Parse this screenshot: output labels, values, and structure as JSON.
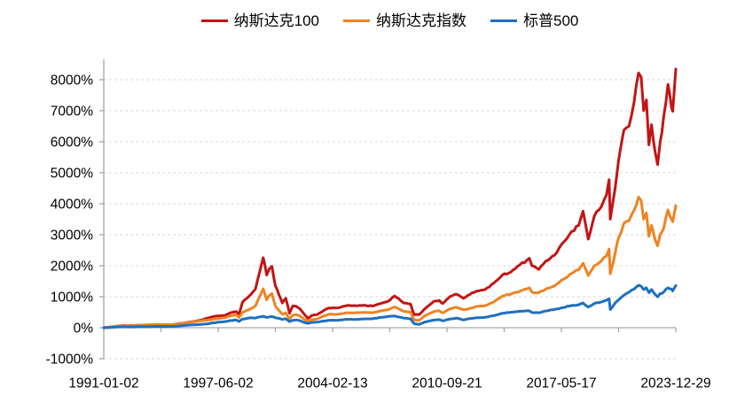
{
  "colors": {
    "background": "#ffffff",
    "axis": "#a6a6a6",
    "gridline": "#d9d9d9",
    "text": "#000000",
    "nasdaq100": "#c31414",
    "nasdaq_composite": "#ee8322",
    "sp500": "#1e6fc0"
  },
  "chart_data": {
    "type": "line",
    "title": "",
    "grid": "horizontal-dashed",
    "legend_position": "top-center",
    "x_axis": {
      "labels": [
        "1991-01-02",
        "1997-06-02",
        "2004-02-13",
        "2010-09-21",
        "2017-05-17",
        "2023-12-29"
      ],
      "min_year": 1991.0,
      "max_year": 2024.0,
      "minor_ticks": 10
    },
    "y_axis": {
      "unit": "%",
      "min": -1000,
      "max": 8000,
      "step": 1000,
      "tick_labels": [
        "8000%",
        "7000%",
        "6000%",
        "5000%",
        "4000%",
        "3000%",
        "2000%",
        "1000%",
        "0%",
        "-1000%"
      ]
    },
    "x": [
      1991.0,
      1991.5,
      1992.0,
      1992.5,
      1993.0,
      1993.5,
      1994.0,
      1994.5,
      1995.0,
      1995.5,
      1996.0,
      1996.5,
      1997.0,
      1997.5,
      1998.0,
      1998.3,
      1998.65,
      1998.8,
      1999.0,
      1999.25,
      1999.5,
      1999.75,
      1999.9,
      2000.2,
      2000.4,
      2000.55,
      2000.7,
      2000.9,
      2001.1,
      2001.3,
      2001.5,
      2001.72,
      2001.9,
      2002.1,
      2002.3,
      2002.5,
      2002.78,
      2003.0,
      2003.3,
      2003.7,
      2004.0,
      2004.5,
      2005.0,
      2005.5,
      2006.0,
      2006.5,
      2007.0,
      2007.4,
      2007.78,
      2008.0,
      2008.3,
      2008.7,
      2008.9,
      2009.2,
      2009.5,
      2010.0,
      2010.35,
      2010.55,
      2011.0,
      2011.35,
      2011.75,
      2012.0,
      2012.5,
      2013.0,
      2013.5,
      2014.0,
      2014.5,
      2015.0,
      2015.55,
      2015.7,
      2016.1,
      2016.5,
      2017.0,
      2017.5,
      2018.0,
      2018.4,
      2018.65,
      2018.95,
      2019.3,
      2019.7,
      2020.0,
      2020.15,
      2020.22,
      2020.5,
      2020.7,
      2021.0,
      2021.3,
      2021.6,
      2021.85,
      2022.0,
      2022.15,
      2022.3,
      2022.45,
      2022.6,
      2022.8,
      2022.95,
      2023.1,
      2023.3,
      2023.55,
      2023.75,
      2023.82,
      2024.0
    ],
    "series": [
      {
        "id": "nasdaq100",
        "name": "纳斯达克100",
        "color": "#c31414",
        "values": [
          0,
          30,
          66,
          70,
          81,
          88,
          100,
          96,
          103,
          140,
          189,
          230,
          312,
          380,
          397,
          480,
          520,
          430,
          821,
          950,
          1080,
          1250,
          1600,
          2260,
          1700,
          1900,
          1980,
          1350,
          1075,
          800,
          950,
          466,
          700,
          691,
          620,
          480,
          304,
          394,
          420,
          560,
          637,
          640,
          713,
          710,
          726,
          700,
          782,
          850,
          1024,
          946,
          800,
          760,
          420,
          424,
          600,
          834,
          880,
          780,
          1013,
          1080,
          950,
          1043,
          1180,
          1235,
          1440,
          1703,
          1800,
          2026,
          2240,
          2000,
          1881,
          2150,
          2341,
          2750,
          3110,
          3300,
          3760,
          2858,
          3600,
          3900,
          4283,
          4777,
          3500,
          4500,
          5400,
          6368,
          6500,
          7300,
          8217,
          8090,
          7000,
          7350,
          5900,
          6550,
          5700,
          5259,
          6000,
          6800,
          7849,
          7100,
          6980,
          8343
        ]
      },
      {
        "id": "nasdaq-composite",
        "name": "纳斯达克指数",
        "color": "#ee8322",
        "values": [
          0,
          28,
          57,
          58,
          82,
          89,
          109,
          97,
          102,
          130,
          183,
          215,
          247,
          285,
          322,
          380,
          420,
          330,
          489,
          560,
          620,
          700,
          900,
          1256,
          900,
          1050,
          1100,
          700,
          564,
          430,
          480,
          282,
          400,
          424,
          380,
          300,
          199,
          260,
          280,
          380,
          438,
          430,
          484,
          480,
          493,
          480,
          549,
          580,
          668,
          614,
          530,
          500,
          254,
          241,
          380,
          510,
          550,
          480,
          613,
          660,
          580,
          600,
          690,
          711,
          830,
          1022,
          1090,
          1172,
          1290,
          1150,
          1130,
          1250,
          1346,
          1560,
          1755,
          1870,
          2079,
          1683,
          2000,
          2150,
          2311,
          2538,
          1743,
          2400,
          2900,
          3363,
          3450,
          3800,
          4214,
          4103,
          3500,
          3700,
          2950,
          3300,
          2850,
          2644,
          3000,
          3200,
          3800,
          3500,
          3420,
          3933
        ]
      },
      {
        "id": "sp500",
        "name": "标普500",
        "color": "#1e6fc0",
        "values": [
          0,
          15,
          28,
          25,
          34,
          37,
          43,
          37,
          41,
          66,
          89,
          103,
          127,
          170,
          197,
          230,
          250,
          200,
          277,
          300,
          320,
          310,
          340,
          368,
          330,
          350,
          360,
          320,
          304,
          270,
          290,
          196,
          240,
          251,
          230,
          180,
          138,
          170,
          180,
          215,
          241,
          240,
          271,
          270,
          282,
          290,
          334,
          360,
          379,
          350,
          310,
          290,
          131,
          107,
          180,
          242,
          260,
          220,
          285,
          310,
          250,
          285,
          320,
          337,
          390,
          466,
          500,
          531,
          545,
          490,
          480,
          540,
          586,
          650,
          719,
          740,
          798,
          668,
          780,
          830,
          890,
          937,
          585,
          800,
          900,
          1050,
          1150,
          1250,
          1368,
          1340,
          1230,
          1290,
          1130,
          1230,
          1080,
          996,
          1100,
          1150,
          1290,
          1250,
          1190,
          1361
        ]
      }
    ]
  }
}
